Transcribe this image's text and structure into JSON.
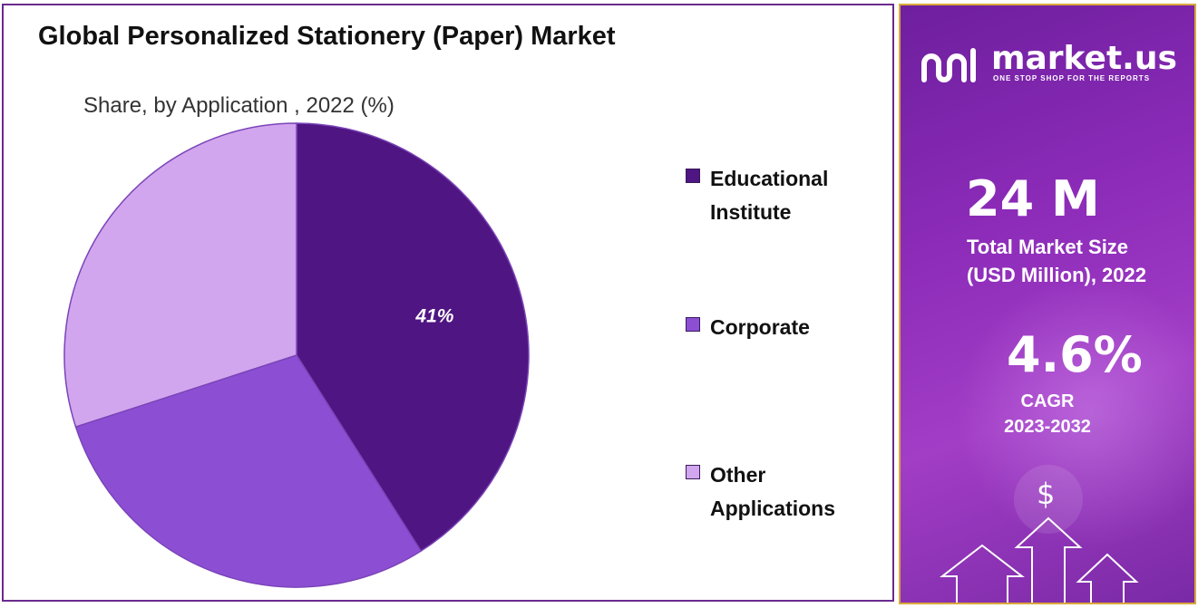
{
  "chart": {
    "title": "Global Personalized Stationery (Paper) Market",
    "subtitle": "Share, by Application , 2022 (%)"
  },
  "chart_data": {
    "type": "pie",
    "title": "Global Personalized Stationery (Paper) Market",
    "subtitle": "Share, by Application , 2022 (%)",
    "slices": [
      {
        "label": "Educational Institute",
        "value": 41,
        "color": "#4f1582",
        "data_label": "41%"
      },
      {
        "label": "Corporate",
        "value": 29,
        "color": "#8c4fd4",
        "data_label": ""
      },
      {
        "label": "Other Applications",
        "value": 30,
        "color": "#d1a6ee",
        "data_label": ""
      }
    ],
    "start_angle_deg": 0,
    "direction": "clockwise",
    "legend_placement": "right"
  },
  "legend": {
    "items": [
      {
        "label": "Educational Institute",
        "color": "#4f1582"
      },
      {
        "label": "Corporate",
        "color": "#8c4fd4"
      },
      {
        "label": "Other Applications",
        "color": "#d1a6ee"
      }
    ]
  },
  "sidebar": {
    "brand_name": "market.us",
    "brand_tagline": "ONE STOP SHOP FOR THE REPORTS",
    "market_size_value": "24 M",
    "market_size_caption_line1": "Total Market Size",
    "market_size_caption_line2": "(USD Million), 2022",
    "cagr_value": "4.6%",
    "cagr_caption_line1": "CAGR",
    "cagr_caption_line2": "2023-2032",
    "dollar_symbol": "$",
    "background_color": "#8b2bb8",
    "border_color": "#d9a83a"
  },
  "icons": {
    "logo": "market-us-logo-icon",
    "growth": "growth-arrows-icon",
    "dollar": "dollar-coin-icon"
  }
}
